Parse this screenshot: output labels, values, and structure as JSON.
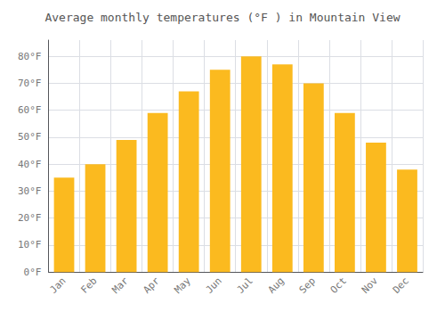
{
  "chart_data": {
    "type": "bar",
    "title": "Average monthly temperatures (°F ) in Mountain View",
    "categories": [
      "Jan",
      "Feb",
      "Mar",
      "Apr",
      "May",
      "Jun",
      "Jul",
      "Aug",
      "Sep",
      "Oct",
      "Nov",
      "Dec"
    ],
    "values": [
      35,
      40,
      49,
      59,
      67,
      75,
      80,
      77,
      70,
      59,
      48,
      38
    ],
    "color": "#FBBA1F",
    "ylim": [
      0,
      86
    ],
    "yticks": [
      {
        "value": 0,
        "label": "0°F"
      },
      {
        "value": 10,
        "label": "10°F"
      },
      {
        "value": 20,
        "label": "20°F"
      },
      {
        "value": 30,
        "label": "30°F"
      },
      {
        "value": 40,
        "label": "40°F"
      },
      {
        "value": 50,
        "label": "50°F"
      },
      {
        "value": 60,
        "label": "60°F"
      },
      {
        "value": 70,
        "label": "70°F"
      },
      {
        "value": 80,
        "label": "80°F"
      }
    ],
    "grid": true
  }
}
